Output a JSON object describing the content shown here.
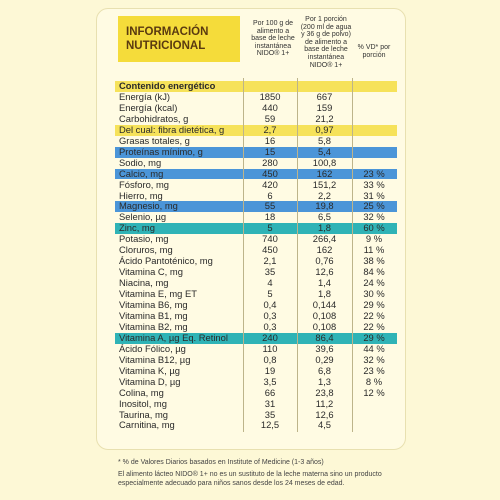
{
  "header": {
    "title": [
      "INFORMACIÓN",
      "NUTRICIONAL"
    ],
    "columns": [
      "Por 100 g de alimento a base de leche instantánea NIDO® 1+",
      "Por 1 porción (200 ml de agua y 36 g de polvo) de alimento a base de leche instantánea NIDO® 1+",
      "% VD* por porción"
    ]
  },
  "table": {
    "rows": [
      {
        "cells": [
          "Contenido energético"
        ],
        "color": "#f6e25a"
      },
      {
        "cells": [
          "Energía (kJ)",
          "1850",
          "667"
        ]
      },
      {
        "cells": [
          "Energía (kcal)",
          "440",
          "159"
        ]
      },
      {
        "cells": [
          "Carbohidratos, g",
          "59",
          "21,2"
        ]
      },
      {
        "cells": [
          "Del cual: fibra dietética, g",
          "2,7",
          "0,97"
        ],
        "color": "#f6e25a"
      },
      {
        "cells": [
          "Grasas totales, g",
          "16",
          "5,8"
        ]
      },
      {
        "cells": [
          "Proteínas mínimo, g",
          "15",
          "5,4"
        ],
        "color": "#4b95d8"
      },
      {
        "cells": [
          "Sodio, mg",
          "280",
          "100,8"
        ]
      },
      {
        "cells": [
          "Calcio, mg",
          "450",
          "162",
          "23 %"
        ],
        "color": "#4b95d8"
      },
      {
        "cells": [
          "Fósforo, mg",
          "420",
          "151,2",
          "33 %"
        ]
      },
      {
        "cells": [
          "Hierro, mg",
          "6",
          "2,2",
          "31 %"
        ]
      },
      {
        "cells": [
          "Magnesio, mg",
          "55",
          "19,8",
          "25 %"
        ],
        "color": "#4b95d8"
      },
      {
        "cells": [
          "Selenio, µg",
          "18",
          "6,5",
          "32 %"
        ]
      },
      {
        "cells": [
          "Zinc, mg",
          "5",
          "1,8",
          "60 %"
        ],
        "color": "#2fb3b6"
      },
      {
        "cells": [
          "Potasio, mg",
          "740",
          "266,4",
          "9 %"
        ]
      },
      {
        "cells": [
          "Cloruros, mg",
          "450",
          "162",
          "11 %"
        ]
      },
      {
        "cells": [
          "Ácido Pantoténico, mg",
          "2,1",
          "0,76",
          "38 %"
        ]
      },
      {
        "cells": [
          "Vitamina C, mg",
          "35",
          "12,6",
          "84 %"
        ]
      },
      {
        "cells": [
          "Niacina, mg",
          "4",
          "1,4",
          "24 %"
        ]
      },
      {
        "cells": [
          "Vitamina E, mg ET",
          "5",
          "1,8",
          "30 %"
        ]
      },
      {
        "cells": [
          "Vitamina B6, mg",
          "0,4",
          "0,144",
          "29 %"
        ]
      },
      {
        "cells": [
          "Vitamina B1, mg",
          "0,3",
          "0,108",
          "22 %"
        ]
      },
      {
        "cells": [
          "Vitamina B2, mg",
          "0,3",
          "0,108",
          "22 %"
        ]
      },
      {
        "cells": [
          "Vitamina A, µg  Eq. Retinol",
          "240",
          "86,4",
          "29 %"
        ],
        "color": "#2fb3b6"
      },
      {
        "cells": [
          "Ácido Fólico, µg",
          "110",
          "39,6",
          "44 %"
        ]
      },
      {
        "cells": [
          "Vitamina B12, µg",
          "0,8",
          "0,29",
          "32 %"
        ]
      },
      {
        "cells": [
          "Vitamina K, µg",
          "19",
          "6,8",
          "23 %"
        ]
      },
      {
        "cells": [
          "Vitamina D, µg",
          "3,5",
          "1,3",
          "8 %"
        ]
      },
      {
        "cells": [
          "Colina, mg",
          "66",
          "23,8",
          "12 %"
        ]
      },
      {
        "cells": [
          "Inositol, mg",
          "31",
          "11,2"
        ]
      },
      {
        "cells": [
          "Taurina, mg",
          "35",
          "12,6"
        ]
      },
      {
        "cells": [
          "Carnitina, mg",
          "12,5",
          "4,5"
        ]
      }
    ]
  },
  "footnotes": [
    "* % de Valores Diarios basados en Institute of Medicine (1-3 años)",
    "El alimento lácteo NIDO® 1+ no es un sustituto de la leche materna sino un producto especialmente adecuado para niños sanos desde los 24 meses de edad."
  ]
}
